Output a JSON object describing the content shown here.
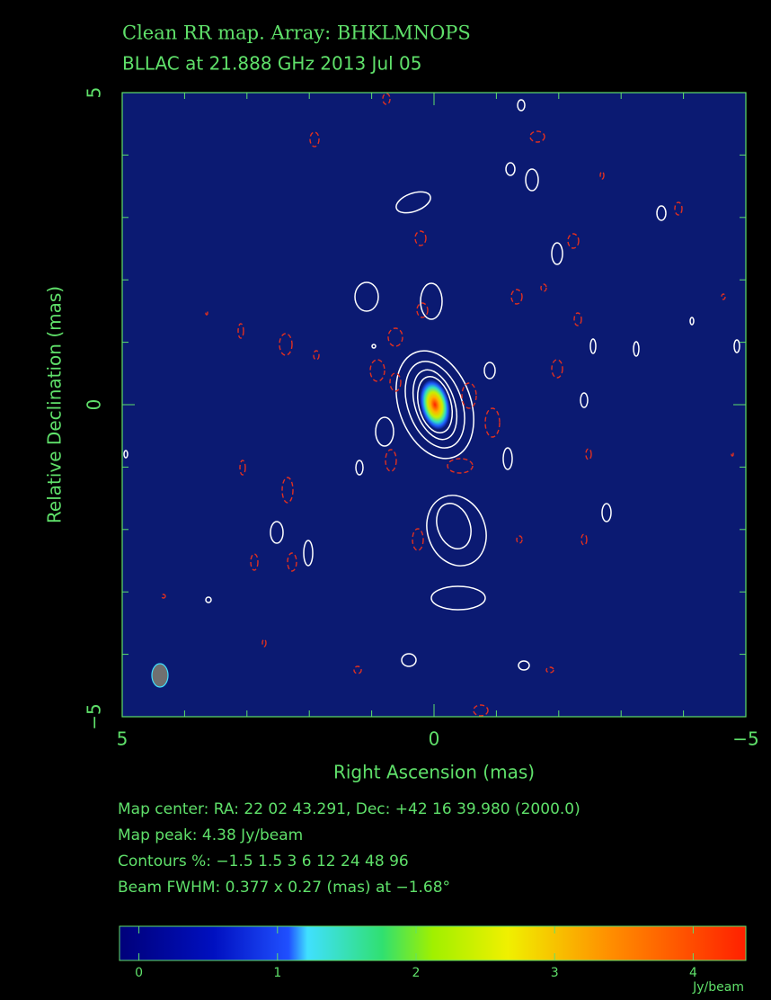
{
  "chart_data": {
    "type": "image",
    "title": "Clean RR map.  Array:  BHKLMNOPS",
    "subtitle": "BLLAC at 21.888 GHz 2013 Jul 05",
    "x_label": "Right Ascension  (mas)",
    "y_label": "Relative Declination  (mas)",
    "xlim": [
      5,
      -5
    ],
    "ylim": [
      -5,
      5
    ],
    "xticks": [
      5,
      0,
      {
        "value": -5,
        "label": "−5"
      }
    ],
    "yticks": [
      {
        "value": -5,
        "label": "−5"
      },
      0,
      5
    ],
    "xminorticks": [
      4,
      3,
      2,
      1,
      -1,
      -2,
      -3,
      -4
    ],
    "yminorticks": [
      -4,
      -3,
      -2,
      -1,
      1,
      2,
      3,
      4
    ],
    "notes": [
      "Map center:  RA: 22 02 43.291,  Dec: +42 16 39.980 (2000.0)",
      "Map peak: 4.38 Jy/beam",
      "Contours %: −1.5 1.5 3 6 12 24 48 96",
      "Beam FWHM: 0.377 x 0.27 (mas) at −1.68°"
    ],
    "colorbar": {
      "lim": [
        -0.14,
        4.38
      ],
      "ticks": [
        0,
        1,
        2,
        3,
        4
      ],
      "label": "Jy/beam"
    }
  }
}
